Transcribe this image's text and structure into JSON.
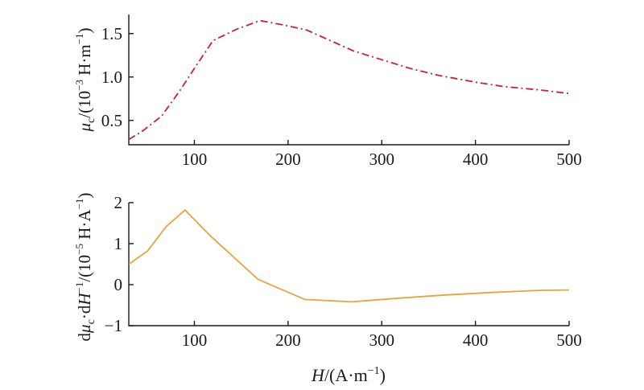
{
  "chart_data": [
    {
      "type": "line",
      "x": [
        30,
        45,
        65,
        85,
        100,
        120,
        145,
        170,
        195,
        220,
        245,
        270,
        300,
        330,
        360,
        400,
        430,
        470,
        500
      ],
      "series": [
        {
          "values": [
            0.28,
            0.38,
            0.55,
            0.85,
            1.1,
            1.42,
            1.55,
            1.65,
            1.6,
            1.54,
            1.42,
            1.3,
            1.2,
            1.1,
            1.02,
            0.94,
            0.89,
            0.85,
            0.81
          ],
          "color": "#c8232c",
          "dash": "dash-dot"
        }
      ],
      "xlim": [
        30,
        500
      ],
      "ylim": [
        0.22,
        1.72
      ],
      "xticks": [
        "100",
        "200",
        "300",
        "400",
        "500"
      ],
      "yticks": [
        "0.5",
        "1.0",
        "1.5"
      ],
      "ylabel": {
        "mu": "μ",
        "mu_sub": "c",
        "rest_a": "/(10",
        "exp": "−3",
        "rest_b": " H·m",
        "exp2": "−1",
        "close": ")"
      }
    },
    {
      "type": "line",
      "x": [
        30,
        50,
        70,
        90,
        118,
        168,
        218,
        268,
        318,
        368,
        418,
        468,
        500
      ],
      "series": [
        {
          "values": [
            0.5,
            0.82,
            1.42,
            1.82,
            1.17,
            0.13,
            -0.36,
            -0.42,
            -0.33,
            -0.25,
            -0.19,
            -0.14,
            -0.13
          ],
          "color": "#e8a33a",
          "dash": "solid"
        }
      ],
      "xlim": [
        30,
        500
      ],
      "ylim": [
        -1,
        2
      ],
      "xticks": [
        "100",
        "200",
        "300",
        "400",
        "500"
      ],
      "yticks": [
        "−1",
        "0",
        "1",
        "2"
      ],
      "ylabel": {
        "d1": "d",
        "mu": "μ",
        "mu_sub": "c",
        "mid": "·d",
        "H": "H",
        "exp0": "−1",
        "rest_a": "/(10",
        "exp": "−5",
        "rest_b": " H·A",
        "exp2": "−1",
        "close": ")"
      },
      "xlabel": {
        "H": "H",
        "rest": "/(A·m",
        "exp": "−1",
        "close": ")"
      }
    }
  ]
}
